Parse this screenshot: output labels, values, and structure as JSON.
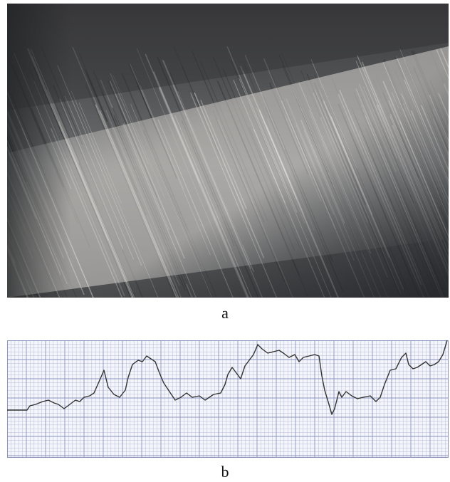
{
  "figure": {
    "panel_a": {
      "label": "a"
    },
    "panel_b": {
      "label": "b"
    }
  },
  "colors": {
    "chart_paper": "#f4f6fb",
    "grid_minor": "#aeb4d2",
    "grid_major": "#8c93bf",
    "trace": "#333333"
  }
}
